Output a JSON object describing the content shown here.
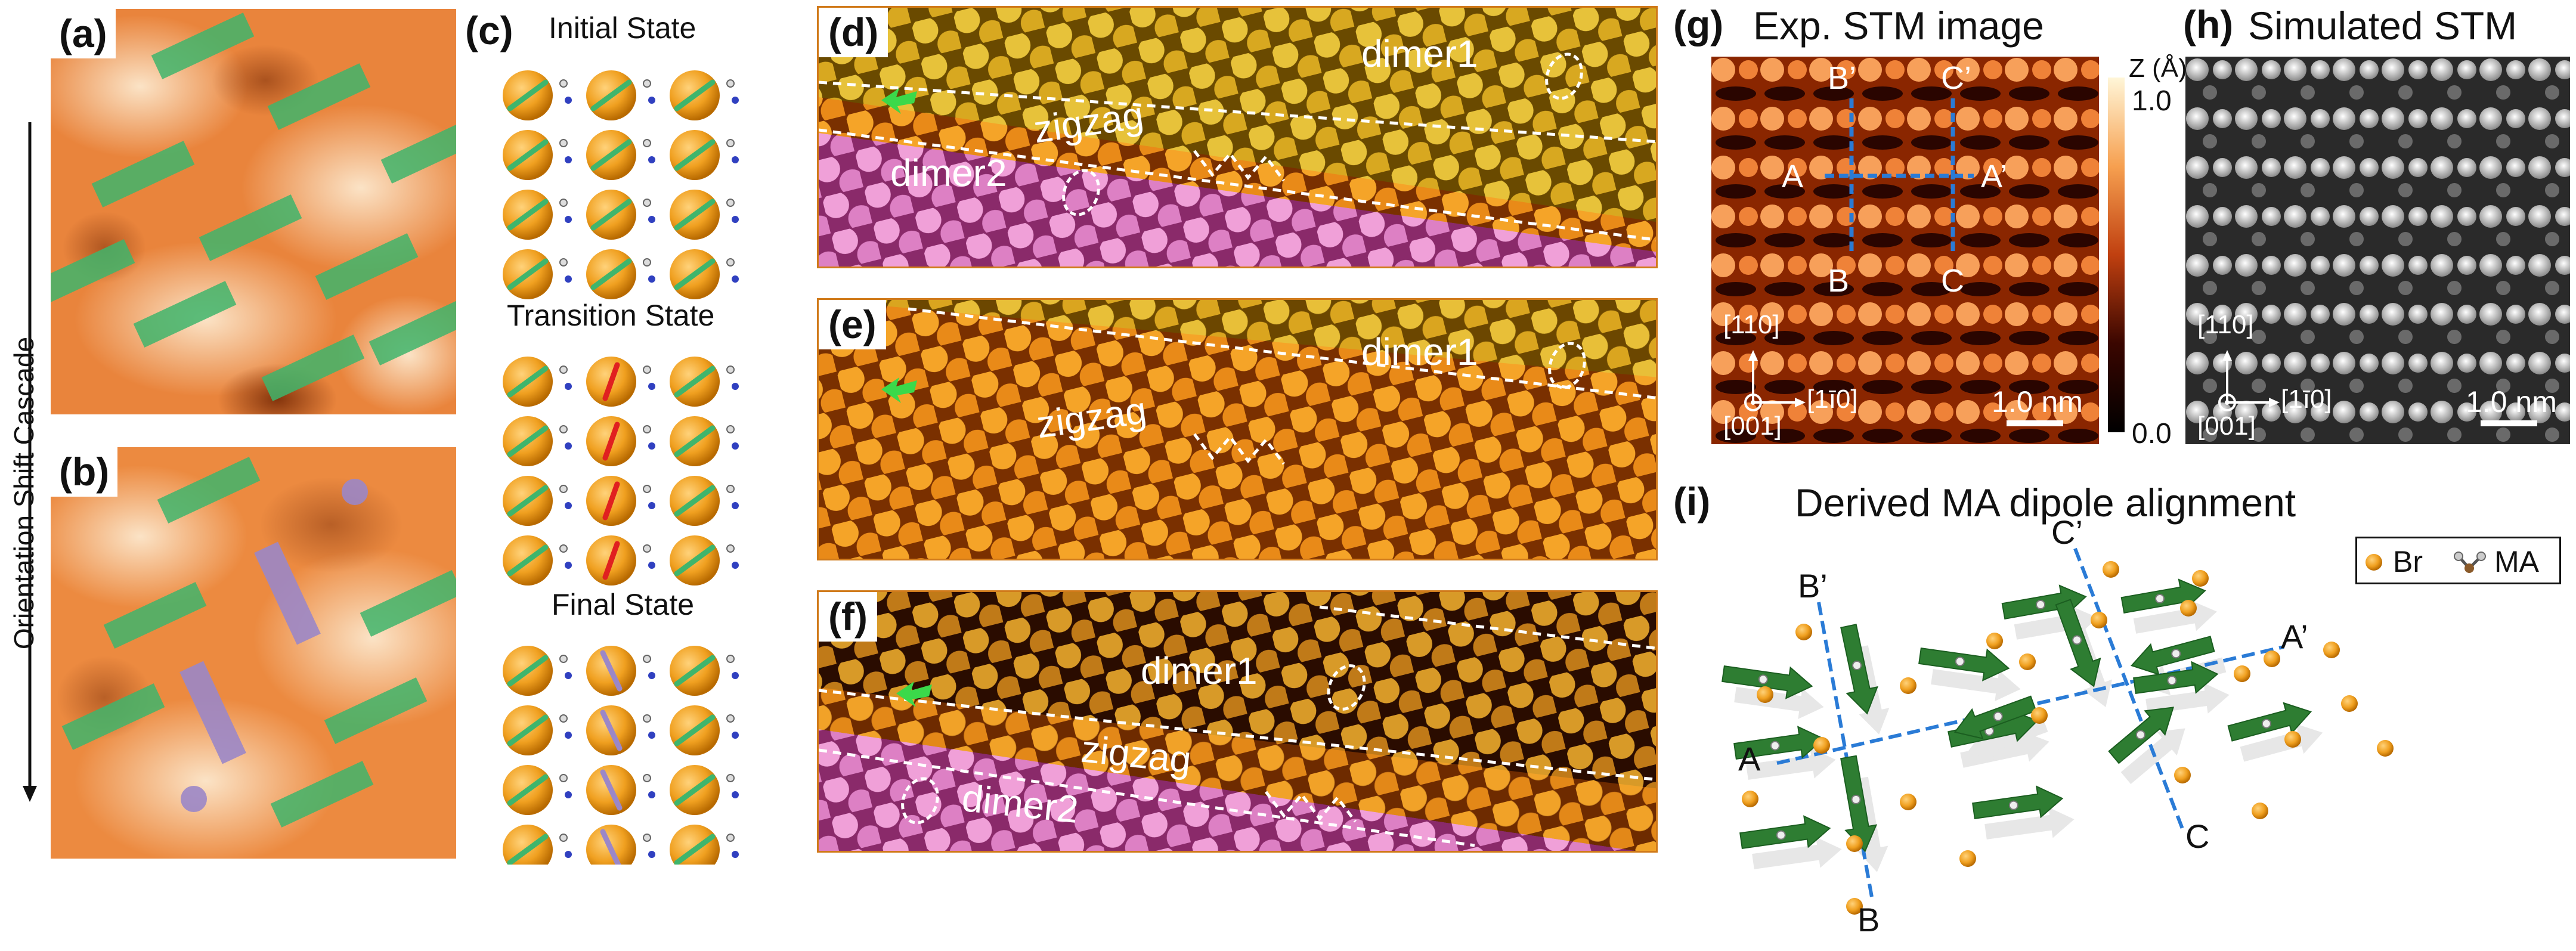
{
  "figure": {
    "colors": {
      "orange_light": "#f6c89a",
      "orange_dark": "#c85a18",
      "green": "#3fb56c",
      "purple": "#9b87c8",
      "stm_dark": "#2a0500",
      "stm_bright": "#fff2c8",
      "dimer2_magenta": "#c84ab4",
      "dipole_green": "#2e7d32",
      "axis_blue": "#2a7bd6"
    },
    "vertical_axis": {
      "label": "Orientation Shift Cascade"
    },
    "panel_a": {
      "label": "(a)"
    },
    "panel_b": {
      "label": "(b)"
    },
    "panel_c": {
      "label": "(c)",
      "states": [
        "Initial State",
        "Transition State",
        "Final State"
      ]
    },
    "panel_d": {
      "label": "(d)",
      "annotations": {
        "dimer1": "dimer1",
        "zigzag": "zigzag",
        "dimer2": "dimer2"
      }
    },
    "panel_e": {
      "label": "(e)",
      "annotations": {
        "dimer1": "dimer1",
        "zigzag": "zigzag"
      }
    },
    "panel_f": {
      "label": "(f)",
      "annotations": {
        "dimer1": "dimer1",
        "zigzag": "zigzag",
        "dimer2": "dimer2"
      }
    },
    "panel_g": {
      "label": "(g)",
      "title": "Exp. STM image",
      "colorbar": {
        "unit": "Z (Å)",
        "max": "1.0",
        "min": "0.0"
      },
      "points": [
        "A",
        "A’",
        "B",
        "B’",
        "C",
        "C’"
      ],
      "directions": {
        "up": "[110]",
        "right": "[1ī0]",
        "out": "[001]"
      },
      "scale_bar": "1.0 nm"
    },
    "panel_h": {
      "label": "(h)",
      "title": "Simulated STM",
      "directions": {
        "up": "[110]",
        "right": "[1ī0]",
        "out": "[001]"
      },
      "scale_bar": "1.0 nm"
    },
    "panel_i": {
      "label": "(i)",
      "title": "Derived MA dipole alignment",
      "legend": {
        "br": "Br",
        "ma": "MA"
      },
      "points": [
        "A",
        "A’",
        "B",
        "B’",
        "C",
        "C’"
      ]
    }
  }
}
